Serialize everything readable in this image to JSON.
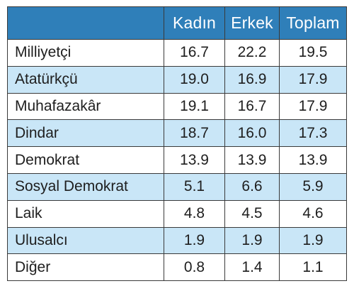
{
  "table": {
    "headers": [
      "",
      "Kadın",
      "Erkek",
      "Toplam"
    ],
    "rows": [
      {
        "label": "Milliyetçi",
        "kadin": "16.7",
        "erkek": "22.2",
        "toplam": "19.5"
      },
      {
        "label": "Atatürkçü",
        "kadin": "19.0",
        "erkek": "16.9",
        "toplam": "17.9"
      },
      {
        "label": "Muhafazakâr",
        "kadin": "19.1",
        "erkek": "16.7",
        "toplam": "17.9"
      },
      {
        "label": "Dindar",
        "kadin": "18.7",
        "erkek": "16.0",
        "toplam": "17.3"
      },
      {
        "label": "Demokrat",
        "kadin": "13.9",
        "erkek": "13.9",
        "toplam": "13.9"
      },
      {
        "label": "Sosyal Demokrat",
        "kadin": "5.1",
        "erkek": "6.6",
        "toplam": "5.9"
      },
      {
        "label": "Laik",
        "kadin": "4.8",
        "erkek": "4.5",
        "toplam": "4.6"
      },
      {
        "label": "Ulusalcı",
        "kadin": "1.9",
        "erkek": "1.9",
        "toplam": "1.9"
      },
      {
        "label": "Diğer",
        "kadin": "0.8",
        "erkek": "1.4",
        "toplam": "1.1"
      }
    ]
  },
  "colors": {
    "header_background": "#2f7fb9",
    "header_text": "#ffffff",
    "alternate_row": "#c9e6f7",
    "border": "#3a3a3a"
  }
}
